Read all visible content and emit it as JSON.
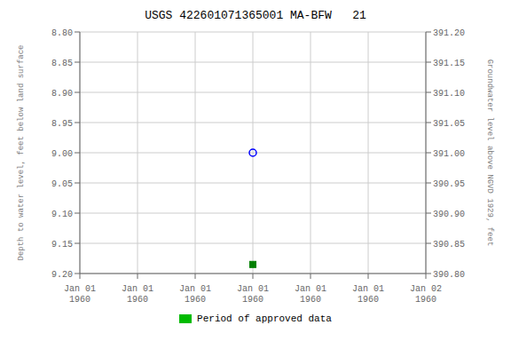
{
  "chart_data": {
    "type": "scatter",
    "title": "USGS 422601071365001 MA-BFW   21",
    "y_label": "Depth to water level, feet below land surface",
    "y2_label": "Groundwater level above NGVD 1929, feet",
    "categories": [
      "Jan 01\n1960",
      "Jan 01\n1960",
      "Jan 01\n1960",
      "Jan 01\n1960",
      "Jan 01\n1960",
      "Jan 01\n1960",
      "Jan 02\n1960"
    ],
    "series": [
      {
        "color": "blue",
        "marker": "open_circle",
        "values": [
          null,
          null,
          null,
          9.0,
          null,
          null,
          null
        ]
      },
      {
        "color": "green",
        "marker": "square",
        "values": [
          null,
          null,
          null,
          9.185,
          null,
          null,
          null
        ]
      }
    ],
    "ylim": [
      9.2,
      8.8
    ],
    "yticks": [
      {
        "value": 8.8,
        "label": "8.80"
      },
      {
        "value": 8.85,
        "label": "8.85"
      },
      {
        "value": 8.9,
        "label": "8.90"
      },
      {
        "value": 8.95,
        "label": "8.95"
      },
      {
        "value": 9.0,
        "label": "9.00"
      },
      {
        "value": 9.05,
        "label": "9.05"
      },
      {
        "value": 9.1,
        "label": "9.10"
      },
      {
        "value": 9.15,
        "label": "9.15"
      },
      {
        "value": 9.2,
        "label": "9.20"
      }
    ],
    "y2lim": [
      390.8,
      391.2
    ],
    "y2ticks": [
      {
        "value": 391.2,
        "label": "391.20"
      },
      {
        "value": 391.15,
        "label": "391.15"
      },
      {
        "value": 391.1,
        "label": "391.10"
      },
      {
        "value": 391.05,
        "label": "391.05"
      },
      {
        "value": 391.0,
        "label": "391.00"
      },
      {
        "value": 390.95,
        "label": "390.95"
      },
      {
        "value": 390.9,
        "label": "390.90"
      },
      {
        "value": 390.85,
        "label": "390.85"
      },
      {
        "value": 390.8,
        "label": "390.80"
      }
    ],
    "grid": true,
    "legend": "bottom",
    "legend_label": "Period of approved data",
    "legend_color": "#00bb00"
  }
}
